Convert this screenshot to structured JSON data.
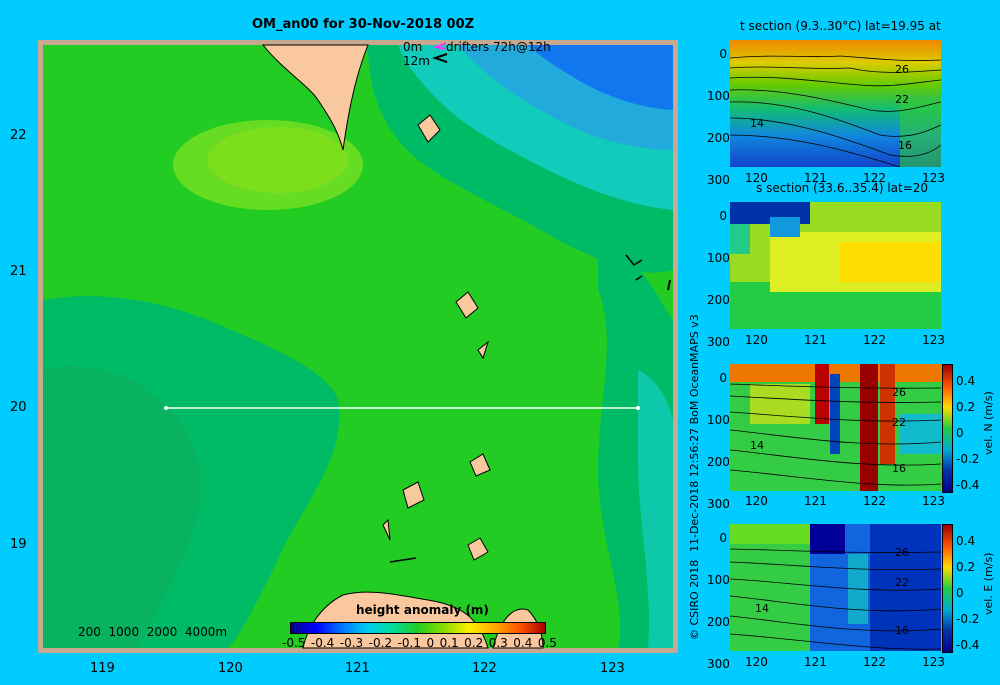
{
  "map": {
    "title": "OM_an00 for 30-Nov-2018 00Z",
    "y_ticks": [
      "22",
      "21",
      "20",
      "19"
    ],
    "x_ticks": [
      "119",
      "120",
      "121",
      "122",
      "123"
    ],
    "legend_depth": "0m",
    "legend_depth2": "12m",
    "drifters": "drifters 72h@12h",
    "depth_scale": "200  1000  2000  4000m",
    "colorbar_title": "height anomaly (m)",
    "colorbar_ticks": [
      "-0.5",
      "-0.4",
      "-0.3",
      "-0.2",
      "-0.1",
      "0",
      "0.1",
      "0.2",
      "0.3",
      "0.4",
      "0.5"
    ],
    "colors": {
      "land": "#f9c89e",
      "sea_mid": "#22cc22",
      "sea_light": "#55dd33",
      "sea_low": "#00bb66",
      "sea_cyan": "#11ccbb",
      "sea_blue": "#1177ee",
      "frame": "#c8a88e"
    }
  },
  "sections": [
    {
      "title": "t section (9.3..30°C) lat=19.95 at",
      "y_ticks": [
        "0",
        "100",
        "200",
        "300"
      ],
      "x_ticks": [
        "120",
        "121",
        "122",
        "123"
      ],
      "labels": [
        "26",
        "22",
        "14",
        "16"
      ]
    },
    {
      "title": "s section (33.6..35.4) lat=20",
      "y_ticks": [
        "0",
        "100",
        "200",
        "300"
      ],
      "x_ticks": [
        "120",
        "121",
        "122",
        "123"
      ]
    },
    {
      "title": "",
      "y_ticks": [
        "0",
        "100",
        "200",
        "300"
      ],
      "x_ticks": [
        "120",
        "121",
        "122",
        "123"
      ],
      "labels": [
        "26",
        "22",
        "14",
        "16"
      ],
      "cb_label": "vel. N (m/s)",
      "cb_ticks": [
        "0.4",
        "0.2",
        "0",
        "-0.2",
        "-0.4"
      ]
    },
    {
      "title": "",
      "y_ticks": [
        "0",
        "100",
        "200",
        "300"
      ],
      "x_ticks": [
        "120",
        "121",
        "122",
        "123"
      ],
      "labels": [
        "26",
        "22",
        "14",
        "16"
      ],
      "cb_label": "vel. E (m/s)",
      "cb_ticks": [
        "0.4",
        "0.2",
        "0",
        "-0.2",
        "-0.4"
      ]
    }
  ],
  "credits": {
    "top": "11-Dec-2018 12:56:27 BoM OceanMAPS v3",
    "bottom": "© CSIRO 2018"
  }
}
